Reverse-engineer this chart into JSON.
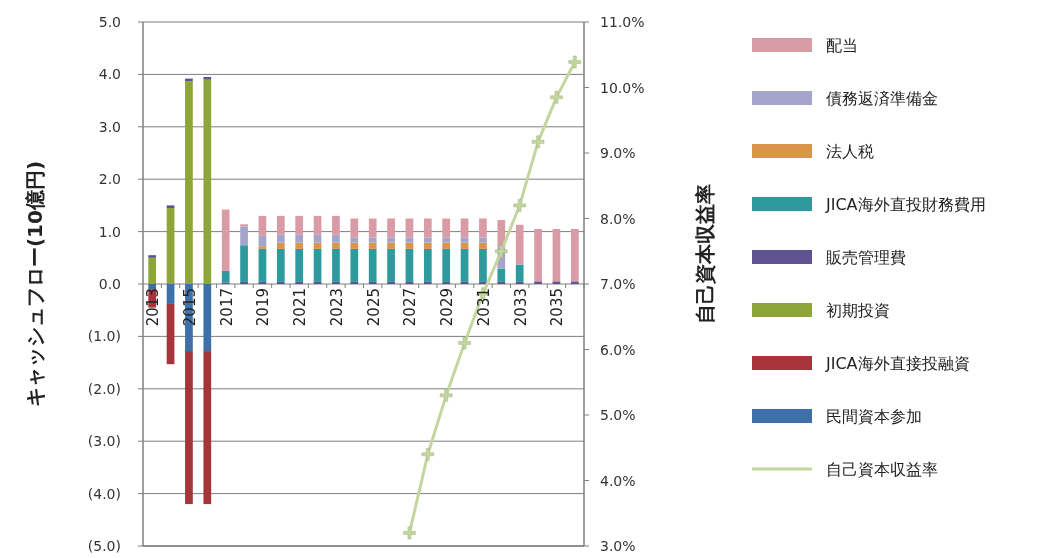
{
  "chart_data": {
    "type": "bar",
    "stacked": true,
    "ylabel": "キャッシュフロー(10億円)",
    "y2label": "自己資本収益率",
    "categories": [
      "2013",
      null,
      "2015",
      null,
      "2017",
      null,
      "2019",
      null,
      "2021",
      null,
      "2023",
      null,
      "2025",
      null,
      "2027",
      null,
      "2029",
      null,
      "2031",
      null,
      "2033",
      null,
      "2035",
      null
    ],
    "ylim": [
      -5,
      5
    ],
    "yticks": [
      {
        "value": -5,
        "label": "(5.0)"
      },
      {
        "value": -4,
        "label": "(4.0)"
      },
      {
        "value": -3,
        "label": "(3.0)"
      },
      {
        "value": -2,
        "label": "(2.0)"
      },
      {
        "value": -1,
        "label": "(1.0)"
      },
      {
        "value": 0,
        "label": "0.0"
      },
      {
        "value": 1,
        "label": "1.0"
      },
      {
        "value": 2,
        "label": "2.0"
      },
      {
        "value": 3,
        "label": "3.0"
      },
      {
        "value": 4,
        "label": "4.0"
      },
      {
        "value": 5,
        "label": "5.0"
      }
    ],
    "y2lim": [
      3,
      11
    ],
    "y2ticks": [
      {
        "value": 3,
        "label": "3.0%"
      },
      {
        "value": 4,
        "label": "4.0%"
      },
      {
        "value": 5,
        "label": "5.0%"
      },
      {
        "value": 6,
        "label": "6.0%"
      },
      {
        "value": 7,
        "label": "7.0%"
      },
      {
        "value": 8,
        "label": "8.0%"
      },
      {
        "value": 9,
        "label": "9.0%"
      },
      {
        "value": 10,
        "label": "10.0%"
      },
      {
        "value": 11,
        "label": "11.0%"
      }
    ],
    "grid": "y",
    "legend": "right",
    "series": [
      {
        "name": "民間資本参加",
        "color": "#3d6fa8",
        "values": [
          -0.1,
          -0.38,
          -1.28,
          -1.28,
          0,
          0,
          0,
          0,
          0,
          0,
          0,
          0,
          0,
          0,
          0,
          0,
          0,
          0,
          0,
          0,
          0,
          0,
          0,
          0
        ]
      },
      {
        "name": "JICA海外直接投融資",
        "color": "#a6343a",
        "values": [
          -0.35,
          -1.15,
          -2.92,
          -2.92,
          0,
          0,
          0,
          0,
          0,
          0,
          0,
          0,
          0,
          0,
          0,
          0,
          0,
          0,
          0,
          0,
          0,
          0,
          0,
          0
        ]
      },
      {
        "name": "初期投資",
        "color": "#8ea53a",
        "values": [
          0.5,
          1.45,
          3.87,
          3.9,
          0,
          0,
          0,
          0,
          0,
          0,
          0,
          0,
          0,
          0,
          0,
          0,
          0,
          0,
          0,
          0,
          0,
          0,
          0,
          0
        ]
      },
      {
        "name": "販売管理費",
        "color": "#5e5290",
        "values": [
          0.05,
          0.05,
          0.05,
          0.05,
          0.03,
          0.04,
          0.04,
          0.04,
          0.04,
          0.04,
          0.04,
          0.04,
          0.04,
          0.04,
          0.04,
          0.04,
          0.04,
          0.04,
          0.04,
          0.04,
          0.04,
          0.05,
          0.05,
          0.05
        ]
      },
      {
        "name": "JICA海外直投財務費用",
        "color": "#2e9a9e",
        "values": [
          0,
          0,
          0,
          0,
          0.22,
          0.7,
          0.63,
          0.63,
          0.63,
          0.63,
          0.63,
          0.63,
          0.63,
          0.63,
          0.63,
          0.63,
          0.63,
          0.63,
          0.63,
          0.25,
          0.33,
          0,
          0,
          0
        ]
      },
      {
        "name": "法人税",
        "color": "#d9964a",
        "values": [
          0,
          0,
          0,
          0,
          0,
          0,
          0.05,
          0.12,
          0.12,
          0.12,
          0.12,
          0.12,
          0.12,
          0.12,
          0.12,
          0.12,
          0.12,
          0.12,
          0.12,
          0,
          0,
          0,
          0,
          0
        ]
      },
      {
        "name": "債務返済準備金",
        "color": "#a5a5cc",
        "values": [
          0,
          0,
          0,
          0,
          0,
          0.36,
          0.2,
          0.15,
          0.15,
          0.15,
          0.15,
          0.1,
          0.1,
          0.1,
          0.1,
          0.1,
          0.1,
          0.1,
          0.1,
          0.4,
          0,
          0,
          0,
          0
        ]
      },
      {
        "name": "配当",
        "color": "#d99ba6",
        "values": [
          0,
          0,
          0,
          0,
          1.17,
          0.04,
          0.38,
          0.36,
          0.36,
          0.36,
          0.36,
          0.36,
          0.36,
          0.36,
          0.36,
          0.36,
          0.36,
          0.36,
          0.36,
          0.53,
          0.76,
          1.0,
          1.0,
          1.0
        ]
      },
      {
        "name": "自己資本収益率",
        "type": "line",
        "axis": "y2",
        "color": "#c4d6a0",
        "marker": "cross",
        "values": [
          null,
          null,
          null,
          null,
          null,
          null,
          null,
          null,
          null,
          null,
          null,
          null,
          null,
          null,
          3.2,
          4.4,
          5.3,
          6.1,
          6.85,
          7.5,
          8.2,
          9.17,
          9.85,
          10.39
        ]
      }
    ]
  }
}
